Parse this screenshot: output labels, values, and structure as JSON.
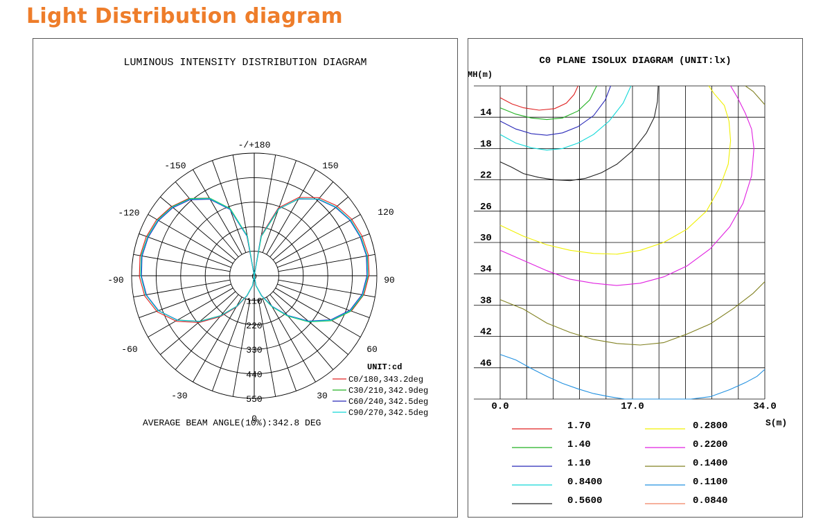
{
  "header": {
    "title": "Light Distribution diagram"
  },
  "chart_data": [
    {
      "type": "polar",
      "title": "LUMINOUS INTENSITY DISTRIBUTION DIAGRAM",
      "angle_labels": [
        "-/+180",
        "150",
        "120",
        "90",
        "60",
        "30",
        "0",
        "-30",
        "-60",
        "-90",
        "-120",
        "-150"
      ],
      "radial_ticks": [
        "0",
        "110",
        "220",
        "330",
        "440",
        "550"
      ],
      "rmax": 550,
      "unit": "UNIT:cd",
      "footer": "AVERAGE BEAM ANGLE(10%):342.8 DEG",
      "series": [
        {
          "name": "C0/180,343.2deg",
          "color": "#e02020"
        },
        {
          "name": "C30/210,342.9deg",
          "color": "#20b020"
        },
        {
          "name": "C60/240,342.5deg",
          "color": "#2828b8"
        },
        {
          "name": "C90/270,342.5deg",
          "color": "#10d8d8"
        }
      ],
      "curve_gamma_deg": [
        0,
        10,
        20,
        30,
        40,
        50,
        60,
        70,
        80,
        90,
        100,
        110,
        120,
        130,
        140,
        150,
        160,
        170,
        180
      ],
      "curve_cd": [
        0,
        45,
        95,
        160,
        235,
        320,
        400,
        460,
        495,
        510,
        515,
        510,
        500,
        480,
        450,
        400,
        320,
        180,
        0
      ]
    },
    {
      "type": "isolux",
      "title": "C0 PLANE ISOLUX DIAGRAM (UNIT:lx)",
      "ylabel": "MH(m)",
      "xlabel": "S(m)",
      "y_ticks": [
        "14",
        "18",
        "22",
        "26",
        "30",
        "34",
        "38",
        "42",
        "46"
      ],
      "x_ticks": [
        "0.0",
        "17.0",
        "34.0"
      ],
      "xlim": [
        0,
        34
      ],
      "ylim": [
        10,
        50
      ],
      "legend": [
        {
          "label": "1.70",
          "color": "#e02020"
        },
        {
          "label": "1.40",
          "color": "#20b020"
        },
        {
          "label": "1.10",
          "color": "#2828b8"
        },
        {
          "label": "0.8400",
          "color": "#10d8d8"
        },
        {
          "label": "0.5600",
          "color": "#202020"
        },
        {
          "label": "0.2800",
          "color": "#f0f000"
        },
        {
          "label": "0.2200",
          "color": "#e020e0"
        },
        {
          "label": "0.1400",
          "color": "#808020"
        },
        {
          "label": "0.1100",
          "color": "#2090e0"
        },
        {
          "label": "0.0840",
          "color": "#f08060"
        }
      ],
      "contours": [
        {
          "level": "1.70",
          "color": "#e02020",
          "x": [
            0,
            1.5,
            3,
            5,
            7,
            8.5,
            9.5,
            10
          ],
          "y": [
            11.5,
            12.3,
            12.8,
            13.1,
            12.9,
            12.2,
            11.1,
            10
          ]
        },
        {
          "level": "1.40",
          "color": "#20b020",
          "x": [
            0,
            2,
            4,
            6,
            8,
            10,
            11.5,
            12.4
          ],
          "y": [
            12.8,
            13.6,
            14.1,
            14.3,
            14.1,
            13.2,
            11.8,
            10
          ]
        },
        {
          "level": "1.10",
          "color": "#2828b8",
          "x": [
            0,
            2,
            4,
            6,
            8,
            10,
            12,
            13.5,
            14.2
          ],
          "y": [
            14.5,
            15.5,
            16.1,
            16.3,
            16.0,
            15.2,
            13.8,
            11.8,
            10
          ]
        },
        {
          "level": "0.8400",
          "color": "#10d8d8",
          "x": [
            0,
            2,
            4,
            6,
            8,
            10,
            12,
            14,
            15.8,
            16.8
          ],
          "y": [
            16.2,
            17.3,
            17.9,
            18.2,
            18.0,
            17.3,
            16.2,
            14.5,
            12.2,
            10
          ]
        },
        {
          "level": "0.5600",
          "color": "#202020",
          "x": [
            0,
            1.5,
            3,
            5,
            7,
            9,
            11,
            13,
            15,
            17,
            18.8,
            19.8,
            20.2,
            20.3
          ],
          "y": [
            19.7,
            20.4,
            21.2,
            21.7,
            22.0,
            22.1,
            21.8,
            21.1,
            20.0,
            18.3,
            16.0,
            14.0,
            12.0,
            10
          ]
        },
        {
          "level": "0.2800",
          "color": "#f0f000",
          "x": [
            0,
            3,
            6,
            9,
            12,
            15,
            18,
            21,
            24,
            26.5,
            28.2,
            29.3,
            29.6,
            29.4,
            28.8,
            27.5,
            26.8
          ],
          "y": [
            27.8,
            29.2,
            30.3,
            31.0,
            31.4,
            31.5,
            31.0,
            30.0,
            28.3,
            26.0,
            23.0,
            20.0,
            17.0,
            14.5,
            12.5,
            11.0,
            10
          ]
        },
        {
          "level": "0.2200",
          "color": "#e020e0",
          "x": [
            0,
            3,
            6,
            9,
            12,
            15,
            18,
            21,
            24,
            27,
            29.5,
            31.2,
            32.3,
            32.6,
            32.3,
            31.5,
            30.5,
            29.6
          ],
          "y": [
            31.0,
            32.3,
            33.6,
            34.7,
            35.2,
            35.5,
            35.2,
            34.4,
            33.0,
            30.8,
            28.0,
            25.0,
            21.5,
            18.0,
            15.5,
            13.5,
            11.5,
            10
          ]
        },
        {
          "level": "0.1400",
          "color": "#808020",
          "x": [
            0,
            3,
            6,
            9,
            12,
            15,
            18,
            21,
            24,
            27,
            30,
            32.5,
            34
          ],
          "y": [
            37.3,
            38.5,
            40.3,
            41.5,
            42.4,
            42.9,
            43.1,
            42.8,
            41.7,
            40.4,
            38.4,
            36.5,
            35
          ]
        },
        {
          "level": "0.1100",
          "color": "#2090e0",
          "x": [
            0,
            2,
            4,
            6,
            8,
            10,
            12,
            14,
            16,
            18,
            20,
            22,
            24.5,
            27,
            29.5,
            31.5,
            33,
            34
          ],
          "y": [
            44.3,
            45.0,
            46.1,
            47.1,
            48.0,
            48.7,
            49.3,
            49.7,
            50,
            50,
            50,
            50,
            50,
            49.7,
            48.8,
            47.9,
            47.1,
            46.2
          ]
        },
        {
          "level": "0.1400",
          "color": "#808020",
          "x": [
            31.5,
            32.5,
            33.3,
            34
          ],
          "y": [
            10,
            10.7,
            11.6,
            12.4
          ]
        }
      ]
    }
  ]
}
